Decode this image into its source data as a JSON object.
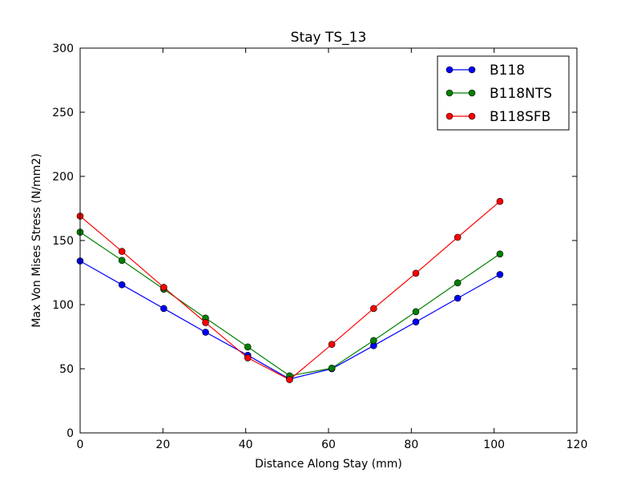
{
  "chart_data": {
    "type": "line",
    "title": "Stay TS_13",
    "xlabel": "Distance Along Stay (mm)",
    "ylabel": "Max Von Mises Stress (N/mm2)",
    "xlim": [
      0,
      120
    ],
    "ylim": [
      0,
      300
    ],
    "xticks": [
      0,
      20,
      40,
      60,
      80,
      100,
      120
    ],
    "yticks": [
      0,
      50,
      100,
      150,
      200,
      250,
      300
    ],
    "grid": false,
    "legend_position": "top-right",
    "x": [
      0,
      10.1,
      20.2,
      30.3,
      40.5,
      50.6,
      60.8,
      70.9,
      81.1,
      91.2,
      101.4
    ],
    "series": [
      {
        "name": "B118",
        "color": "#0000ff",
        "values": [
          134,
          115.5,
          97,
          78.5,
          60.5,
          42,
          50,
          68,
          86.5,
          105,
          123.5
        ]
      },
      {
        "name": "B118NTS",
        "color": "#008000",
        "values": [
          156.5,
          134.5,
          112,
          89.5,
          67,
          44.5,
          50.5,
          72,
          94.5,
          117,
          139.5
        ]
      },
      {
        "name": "B118SFB",
        "color": "#ff0000",
        "values": [
          169,
          141.5,
          113.5,
          86,
          58.5,
          41.5,
          69,
          97,
          124.5,
          152.5,
          180.5
        ]
      }
    ]
  }
}
